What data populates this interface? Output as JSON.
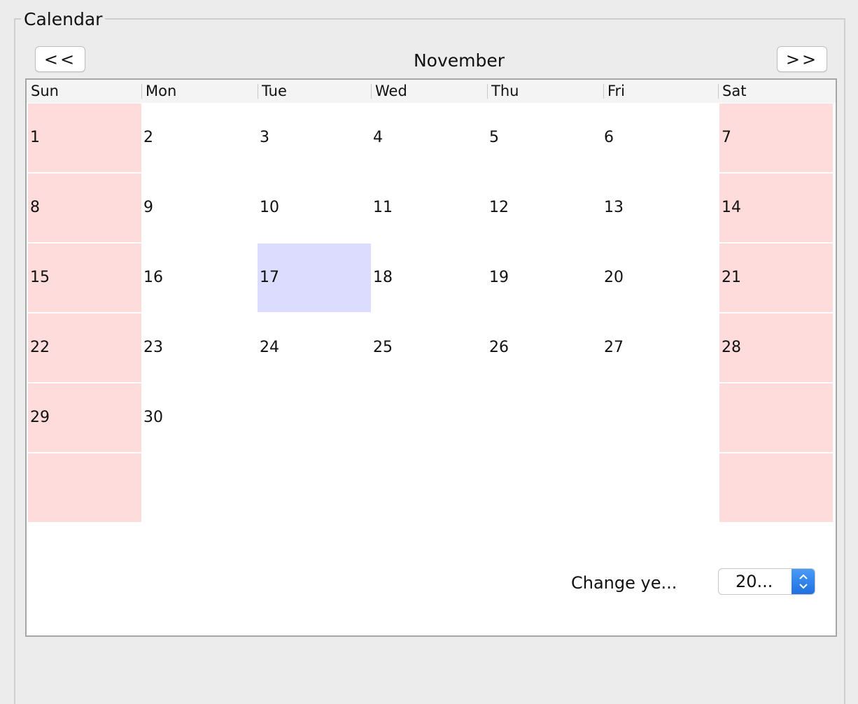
{
  "group": {
    "title": "Calendar"
  },
  "nav": {
    "prev_label": "<<",
    "next_label": ">>",
    "month": "November"
  },
  "weekdays": [
    "Sun",
    "Mon",
    "Tue",
    "Wed",
    "Thu",
    "Fri",
    "Sat"
  ],
  "weeks": [
    [
      "1",
      "2",
      "3",
      "4",
      "5",
      "6",
      "7"
    ],
    [
      "8",
      "9",
      "10",
      "11",
      "12",
      "13",
      "14"
    ],
    [
      "15",
      "16",
      "17",
      "18",
      "19",
      "20",
      "21"
    ],
    [
      "22",
      "23",
      "24",
      "25",
      "26",
      "27",
      "28"
    ],
    [
      "29",
      "30",
      "",
      "",
      "",
      "",
      ""
    ],
    [
      "",
      "",
      "",
      "",
      "",
      "",
      ""
    ]
  ],
  "selected_day": "17",
  "colors": {
    "weekend": "#ffdcdc",
    "today": "#dcdcff",
    "accent": "#2f7ff0"
  },
  "year": {
    "label": "Change ye...",
    "value": "20..."
  }
}
